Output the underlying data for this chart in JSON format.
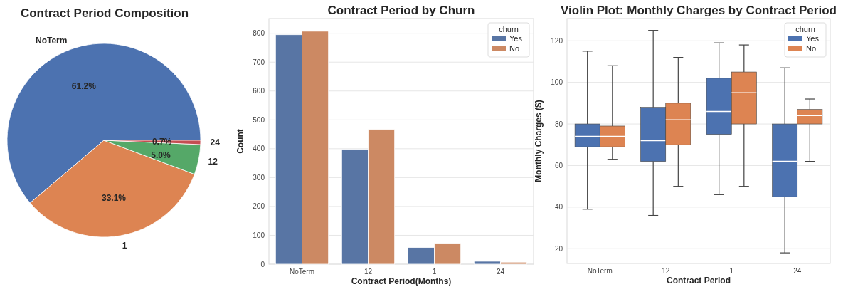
{
  "chart_data": [
    {
      "type": "pie",
      "title": "Contract Period Composition",
      "categories": [
        "NoTerm",
        "1",
        "12",
        "24"
      ],
      "values": [
        61.2,
        33.1,
        5.0,
        0.7
      ],
      "colors": [
        "#4c72b0",
        "#dd8452",
        "#55a868",
        "#c44e52"
      ],
      "value_labels": [
        "61.2%",
        "33.1%",
        "5.0%",
        "0.7%"
      ]
    },
    {
      "type": "bar",
      "title": "Contract Period by Churn",
      "xlabel": "Contract Period(Months)",
      "ylabel": "Count",
      "legend_title": "churn",
      "categories": [
        "NoTerm",
        "12",
        "1",
        "24"
      ],
      "series": [
        {
          "name": "Yes",
          "color": "#5875a4",
          "values": [
            795,
            398,
            58,
            10
          ]
        },
        {
          "name": "No",
          "color": "#cc8963",
          "values": [
            807,
            467,
            72,
            7
          ]
        }
      ],
      "ylim": [
        0,
        851
      ],
      "yticks": [
        0,
        100,
        200,
        300,
        400,
        500,
        600,
        700,
        800
      ],
      "grid": "y",
      "legend": "top right"
    },
    {
      "type": "box",
      "title": "Violin Plot: Monthly Charges by Contract Period",
      "xlabel": "Contract Period",
      "ylabel": "Monthly Charges ($)",
      "legend_title": "churn",
      "categories": [
        "NoTerm",
        "12",
        "1",
        "24"
      ],
      "series": [
        {
          "name": "Yes",
          "color": "#4c72b0",
          "boxes": [
            {
              "low": 39,
              "q1": 69,
              "median": 74,
              "q3": 80,
              "high": 115
            },
            {
              "low": 36,
              "q1": 62,
              "median": 72,
              "q3": 88,
              "high": 125
            },
            {
              "low": 46,
              "q1": 75,
              "median": 86,
              "q3": 102,
              "high": 119
            },
            {
              "low": 18,
              "q1": 45,
              "median": 62,
              "q3": 80,
              "high": 107
            }
          ]
        },
        {
          "name": "No",
          "color": "#dd8452",
          "boxes": [
            {
              "low": 63,
              "q1": 69,
              "median": 74,
              "q3": 79,
              "high": 108
            },
            {
              "low": 50,
              "q1": 70,
              "median": 82,
              "q3": 90,
              "high": 112
            },
            {
              "low": 50,
              "q1": 80,
              "median": 95,
              "q3": 105,
              "high": 118
            },
            {
              "low": 62,
              "q1": 80,
              "median": 84,
              "q3": 87,
              "high": 92
            }
          ]
        }
      ],
      "ylim": [
        12.9,
        130.7
      ],
      "yticks": [
        20,
        40,
        60,
        80,
        100,
        120
      ],
      "grid": "y",
      "legend": "top right"
    }
  ]
}
